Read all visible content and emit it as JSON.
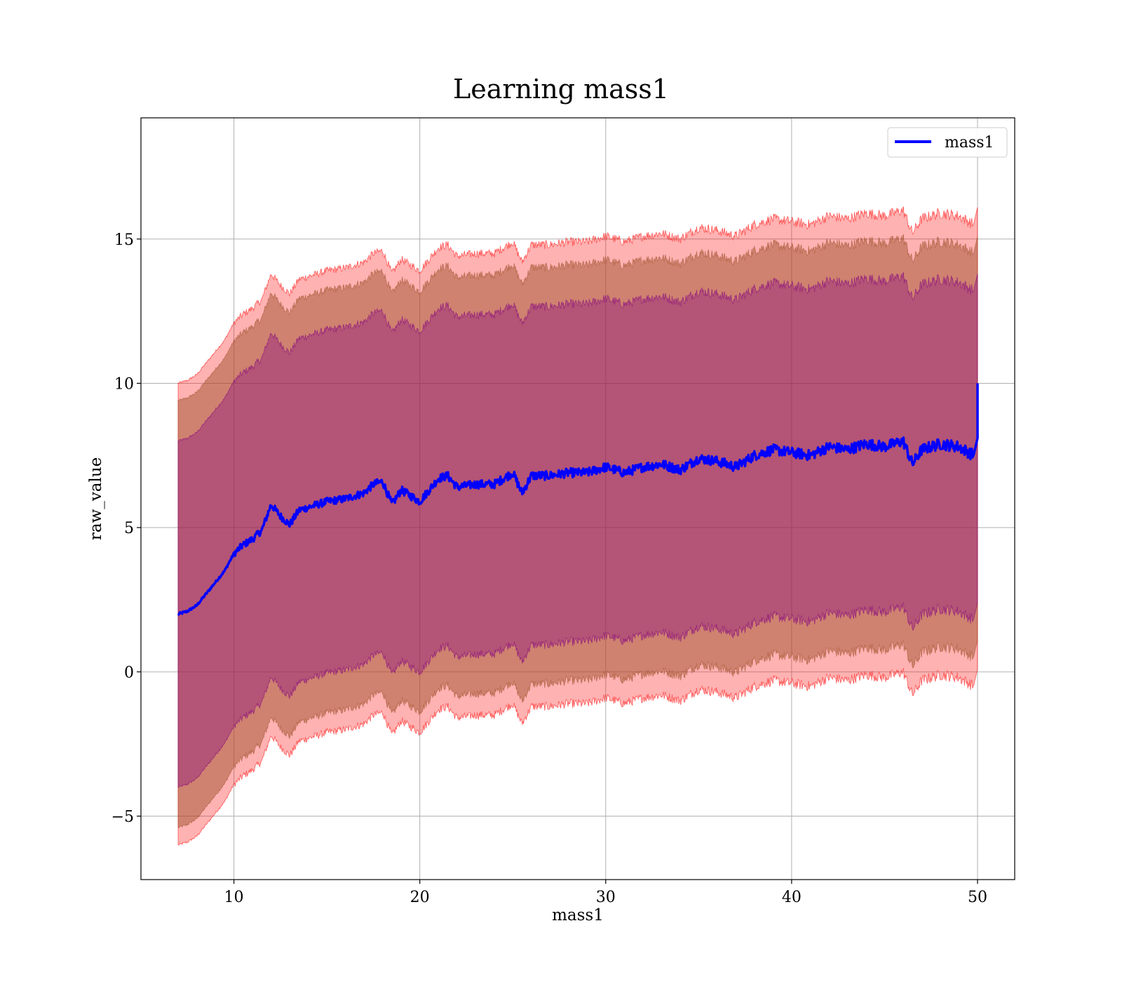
{
  "chart_data": {
    "type": "area",
    "title": "Learning mass1",
    "xlabel": "mass1",
    "ylabel": "raw_value",
    "xlim": [
      5,
      52
    ],
    "ylim": [
      -7.2,
      19.2
    ],
    "xticks": [
      10,
      20,
      30,
      40,
      50
    ],
    "yticks": [
      -5,
      0,
      5,
      10,
      15
    ],
    "ytick_labels": [
      "−5",
      "0",
      "5",
      "10",
      "15"
    ],
    "grid": true,
    "legend": {
      "position": "top-right",
      "entries": [
        "mass1"
      ]
    },
    "colors": {
      "line": "#0000ff",
      "band_outer": "#ff0000",
      "band_middle": "#a0522d",
      "band_inner": "#800080"
    },
    "mean_anchors": [
      [
        7.0,
        2.0
      ],
      [
        7.5,
        2.1
      ],
      [
        8.0,
        2.3
      ],
      [
        8.5,
        2.7
      ],
      [
        9.0,
        3.1
      ],
      [
        9.5,
        3.5
      ],
      [
        10.0,
        4.1
      ],
      [
        10.5,
        4.4
      ],
      [
        11.0,
        4.6
      ],
      [
        11.5,
        4.9
      ],
      [
        12.0,
        5.8
      ],
      [
        12.5,
        5.4
      ],
      [
        13.0,
        5.1
      ],
      [
        13.5,
        5.6
      ],
      [
        14.0,
        5.7
      ],
      [
        15.0,
        5.9
      ],
      [
        16.0,
        6.0
      ],
      [
        17.0,
        6.2
      ],
      [
        17.5,
        6.5
      ],
      [
        18.0,
        6.6
      ],
      [
        18.5,
        5.8
      ],
      [
        19.0,
        6.3
      ],
      [
        19.5,
        6.1
      ],
      [
        20.0,
        5.9
      ],
      [
        21.0,
        6.7
      ],
      [
        21.5,
        6.8
      ],
      [
        22.0,
        6.4
      ],
      [
        23.0,
        6.5
      ],
      [
        24.0,
        6.5
      ],
      [
        25.0,
        6.9
      ],
      [
        25.5,
        6.2
      ],
      [
        26.0,
        6.8
      ],
      [
        27.0,
        6.8
      ],
      [
        28.0,
        6.9
      ],
      [
        29.0,
        6.9
      ],
      [
        30.0,
        7.1
      ],
      [
        31.0,
        6.9
      ],
      [
        32.0,
        7.1
      ],
      [
        33.0,
        7.2
      ],
      [
        34.0,
        7.0
      ],
      [
        35.0,
        7.4
      ],
      [
        36.0,
        7.3
      ],
      [
        37.0,
        7.1
      ],
      [
        38.0,
        7.5
      ],
      [
        39.0,
        7.7
      ],
      [
        40.0,
        7.6
      ],
      [
        41.0,
        7.5
      ],
      [
        42.0,
        7.8
      ],
      [
        43.0,
        7.7
      ],
      [
        44.0,
        7.9
      ],
      [
        45.0,
        7.8
      ],
      [
        46.0,
        8.0
      ],
      [
        46.5,
        7.2
      ],
      [
        47.0,
        7.7
      ],
      [
        48.0,
        7.9
      ],
      [
        49.0,
        7.8
      ],
      [
        49.8,
        7.5
      ],
      [
        50.0,
        10.0
      ]
    ],
    "band_half_widths": [
      {
        "name": "outer",
        "start": 8.0,
        "end": 8.0
      },
      {
        "name": "middle",
        "start": 7.4,
        "end": 7.0
      },
      {
        "name": "inner",
        "start": 6.0,
        "end": 5.7
      }
    ]
  }
}
